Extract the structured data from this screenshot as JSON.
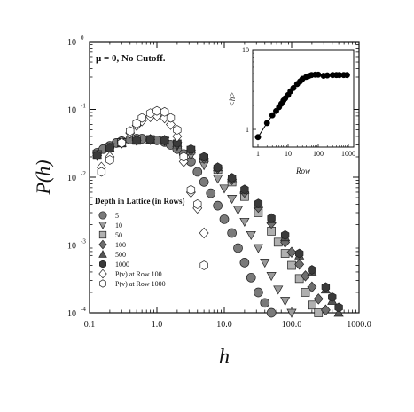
{
  "chart_data": [
    {
      "type": "scatter",
      "title": "μ = 0,  No Cutoff.",
      "xlabel": "h",
      "ylabel": "P(h)",
      "xscale": "log",
      "yscale": "log",
      "xlim": [
        0.1,
        1000
      ],
      "ylim": [
        0.0001,
        1
      ],
      "x_tick_labels": [
        "0.1",
        "1.0",
        "10.0",
        "100.0",
        "1000.0"
      ],
      "y_tick_labels": [
        "10",
        "10",
        "10",
        "10",
        "10"
      ],
      "y_tick_exponents": [
        "0",
        "-1",
        "-2",
        "-3",
        "-4"
      ],
      "legend": {
        "title": "Depth in Lattice (in Rows)",
        "placement": "lower-left"
      },
      "series": [
        {
          "name": "5",
          "marker": "circle",
          "color": "#7a7a7a",
          "points": [
            [
              0.13,
              0.023
            ],
            [
              0.16,
              0.026
            ],
            [
              0.2,
              0.029
            ],
            [
              0.25,
              0.032
            ],
            [
              0.3,
              0.034
            ],
            [
              0.4,
              0.036
            ],
            [
              0.5,
              0.037
            ],
            [
              0.6,
              0.037
            ],
            [
              0.8,
              0.036
            ],
            [
              1.0,
              0.035
            ],
            [
              1.3,
              0.033
            ],
            [
              1.6,
              0.03
            ],
            [
              2.0,
              0.026
            ],
            [
              2.5,
              0.022
            ],
            [
              3.2,
              0.017
            ],
            [
              4,
              0.012
            ],
            [
              5,
              0.0085
            ],
            [
              6.3,
              0.0058
            ],
            [
              8,
              0.0038
            ],
            [
              10,
              0.0024
            ],
            [
              13,
              0.0015
            ],
            [
              16,
              0.0009
            ],
            [
              20,
              0.00055
            ],
            [
              25,
              0.00033
            ],
            [
              32,
              0.0002
            ],
            [
              40,
              0.00014
            ],
            [
              50,
              0.0001
            ]
          ]
        },
        {
          "name": "10",
          "marker": "triangle-down",
          "color": "#9a9a9a",
          "points": [
            [
              0.13,
              0.022
            ],
            [
              0.2,
              0.028
            ],
            [
              0.3,
              0.033
            ],
            [
              0.5,
              0.036
            ],
            [
              0.8,
              0.036
            ],
            [
              1.3,
              0.034
            ],
            [
              2.0,
              0.029
            ],
            [
              3.2,
              0.021
            ],
            [
              5,
              0.015
            ],
            [
              8,
              0.0095
            ],
            [
              10,
              0.0068
            ],
            [
              13,
              0.0048
            ],
            [
              16,
              0.0033
            ],
            [
              20,
              0.0022
            ],
            [
              25,
              0.0014
            ],
            [
              32,
              0.0009
            ],
            [
              40,
              0.00055
            ],
            [
              50,
              0.00035
            ],
            [
              63,
              0.00022
            ],
            [
              80,
              0.00015
            ],
            [
              100,
              0.0001
            ]
          ]
        },
        {
          "name": "50",
          "marker": "square",
          "color": "#b0b0b0",
          "points": [
            [
              0.13,
              0.021
            ],
            [
              0.2,
              0.027
            ],
            [
              0.3,
              0.032
            ],
            [
              0.5,
              0.035
            ],
            [
              0.8,
              0.036
            ],
            [
              1.3,
              0.035
            ],
            [
              2.0,
              0.031
            ],
            [
              3.2,
              0.025
            ],
            [
              5,
              0.019
            ],
            [
              8,
              0.013
            ],
            [
              13,
              0.0085
            ],
            [
              20,
              0.0052
            ],
            [
              32,
              0.003
            ],
            [
              50,
              0.0016
            ],
            [
              63,
              0.0011
            ],
            [
              80,
              0.00075
            ],
            [
              100,
              0.0005
            ],
            [
              130,
              0.00032
            ],
            [
              160,
              0.0002
            ],
            [
              200,
              0.00013
            ],
            [
              250,
              0.0001
            ]
          ]
        },
        {
          "name": "100",
          "marker": "diamond",
          "color": "#6e6e6e",
          "points": [
            [
              0.13,
              0.021
            ],
            [
              0.2,
              0.027
            ],
            [
              0.3,
              0.032
            ],
            [
              0.5,
              0.035
            ],
            [
              0.8,
              0.036
            ],
            [
              1.3,
              0.035
            ],
            [
              2.0,
              0.031
            ],
            [
              3.2,
              0.025
            ],
            [
              5,
              0.019
            ],
            [
              8,
              0.0135
            ],
            [
              13,
              0.0092
            ],
            [
              20,
              0.006
            ],
            [
              32,
              0.0036
            ],
            [
              50,
              0.0021
            ],
            [
              80,
              0.0011
            ],
            [
              100,
              0.00078
            ],
            [
              130,
              0.00052
            ],
            [
              160,
              0.00035
            ],
            [
              200,
              0.00024
            ],
            [
              250,
              0.00016
            ],
            [
              320,
              0.00011
            ]
          ]
        },
        {
          "name": "500",
          "marker": "triangle-up",
          "color": "#555555",
          "points": [
            [
              0.13,
              0.021
            ],
            [
              0.2,
              0.027
            ],
            [
              0.3,
              0.032
            ],
            [
              0.5,
              0.035
            ],
            [
              0.8,
              0.036
            ],
            [
              1.3,
              0.035
            ],
            [
              2.0,
              0.032
            ],
            [
              3.2,
              0.026
            ],
            [
              5,
              0.02
            ],
            [
              8,
              0.014
            ],
            [
              13,
              0.0097
            ],
            [
              20,
              0.0065
            ],
            [
              32,
              0.004
            ],
            [
              50,
              0.0024
            ],
            [
              80,
              0.0013
            ],
            [
              130,
              0.0007
            ],
            [
              200,
              0.0004
            ],
            [
              320,
              0.00022
            ],
            [
              400,
              0.00015
            ],
            [
              500,
              0.0001
            ]
          ]
        },
        {
          "name": "1000",
          "marker": "hexagon",
          "color": "#3a3a3a",
          "points": [
            [
              0.13,
              0.021
            ],
            [
              0.2,
              0.027
            ],
            [
              0.3,
              0.032
            ],
            [
              0.5,
              0.035
            ],
            [
              0.8,
              0.036
            ],
            [
              1.3,
              0.035
            ],
            [
              2.0,
              0.032
            ],
            [
              3.2,
              0.026
            ],
            [
              5,
              0.02
            ],
            [
              8,
              0.014
            ],
            [
              13,
              0.0098
            ],
            [
              20,
              0.0066
            ],
            [
              32,
              0.0041
            ],
            [
              50,
              0.0025
            ],
            [
              80,
              0.0014
            ],
            [
              130,
              0.00075
            ],
            [
              200,
              0.00043
            ],
            [
              320,
              0.00024
            ],
            [
              400,
              0.00017
            ],
            [
              500,
              0.00012
            ]
          ]
        },
        {
          "name": "P(v) at Row 100",
          "marker": "diamond-open",
          "color": "#ffffff",
          "points": [
            [
              0.15,
              0.014
            ],
            [
              0.2,
              0.02
            ],
            [
              0.3,
              0.033
            ],
            [
              0.4,
              0.045
            ],
            [
              0.5,
              0.058
            ],
            [
              0.6,
              0.068
            ],
            [
              0.8,
              0.078
            ],
            [
              1.0,
              0.08
            ],
            [
              1.3,
              0.075
            ],
            [
              1.6,
              0.06
            ],
            [
              2.0,
              0.04
            ],
            [
              2.5,
              0.017
            ],
            [
              3.2,
              0.006
            ],
            [
              4,
              0.0035
            ],
            [
              5,
              0.0015
            ]
          ]
        },
        {
          "name": "P(v) at Row 1000",
          "marker": "hexagon-open",
          "color": "#ffffff",
          "points": [
            [
              0.15,
              0.012
            ],
            [
              0.2,
              0.018
            ],
            [
              0.3,
              0.032
            ],
            [
              0.4,
              0.048
            ],
            [
              0.5,
              0.062
            ],
            [
              0.6,
              0.075
            ],
            [
              0.8,
              0.088
            ],
            [
              1.0,
              0.095
            ],
            [
              1.3,
              0.092
            ],
            [
              1.6,
              0.075
            ],
            [
              2.0,
              0.05
            ],
            [
              2.5,
              0.02
            ],
            [
              3.2,
              0.0065
            ],
            [
              4,
              0.004
            ],
            [
              5,
              0.0005
            ]
          ]
        }
      ]
    },
    {
      "type": "line",
      "xlabel": "Row",
      "ylabel": "<h>",
      "xscale": "log",
      "yscale": "log",
      "xlim": [
        1,
        1000
      ],
      "ylim": [
        0.6,
        10
      ],
      "x_tick_labels": [
        "1",
        "10",
        "100",
        "1000"
      ],
      "y_tick_labels": [
        "1",
        "10"
      ],
      "series": [
        {
          "marker": "circle-filled",
          "color": "#000000",
          "points": [
            [
              1,
              0.8
            ],
            [
              2,
              1.2
            ],
            [
              3,
              1.5
            ],
            [
              4,
              1.7
            ],
            [
              5,
              1.9
            ],
            [
              6,
              2.1
            ],
            [
              7,
              2.3
            ],
            [
              8,
              2.45
            ],
            [
              10,
              2.7
            ],
            [
              12,
              3.0
            ],
            [
              15,
              3.3
            ],
            [
              20,
              3.7
            ],
            [
              25,
              4.0
            ],
            [
              30,
              4.3
            ],
            [
              40,
              4.55
            ],
            [
              50,
              4.7
            ],
            [
              60,
              4.8
            ],
            [
              80,
              4.85
            ],
            [
              100,
              4.85
            ],
            [
              150,
              4.7
            ],
            [
              200,
              4.75
            ],
            [
              300,
              4.8
            ],
            [
              400,
              4.8
            ],
            [
              500,
              4.8
            ],
            [
              700,
              4.8
            ],
            [
              900,
              4.8
            ]
          ]
        }
      ]
    }
  ]
}
